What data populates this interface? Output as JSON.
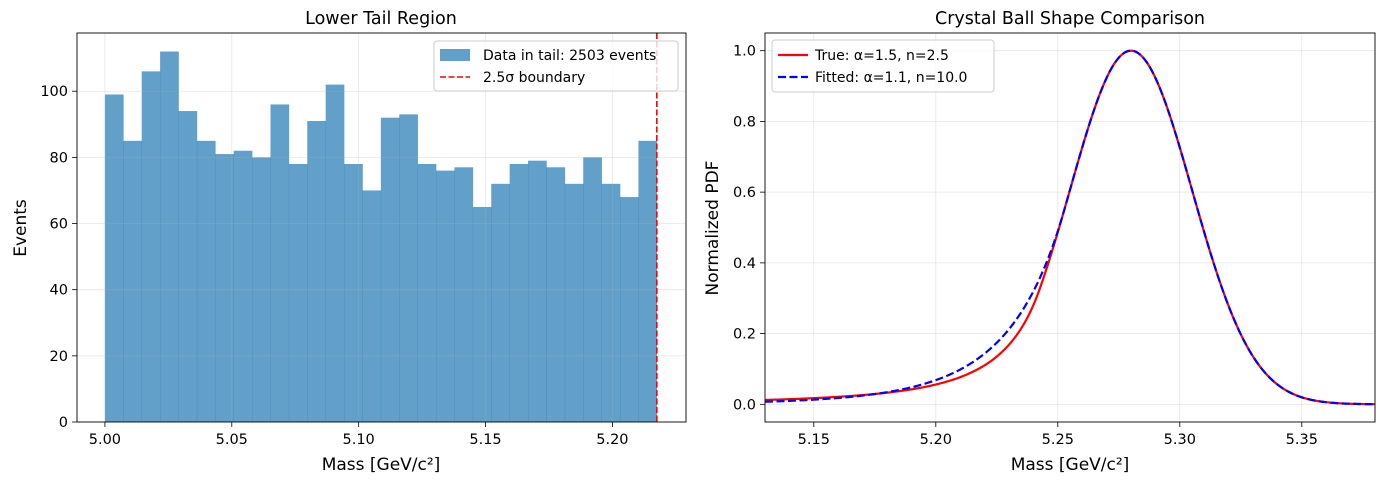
{
  "chart_data": [
    {
      "type": "bar",
      "title": "Lower Tail Region",
      "xlabel": "Mass [GeV/c²]",
      "ylabel": "Events",
      "xlim": [
        4.989,
        5.229
      ],
      "ylim": [
        0,
        117.6
      ],
      "grid": true,
      "legend_placement": "upper-right",
      "xticks": [
        5.0,
        5.05,
        5.1,
        5.15,
        5.2
      ],
      "xtick_labels": [
        "5.00",
        "5.05",
        "5.10",
        "5.15",
        "5.20"
      ],
      "yticks": [
        0,
        20,
        40,
        60,
        80,
        100
      ],
      "ytick_labels": [
        "0",
        "20",
        "40",
        "60",
        "80",
        "100"
      ],
      "bin_range": [
        5.0,
        5.2175
      ],
      "values": [
        99,
        85,
        106,
        112,
        94,
        85,
        81,
        82,
        80,
        96,
        78,
        91,
        102,
        78,
        70,
        92,
        93,
        78,
        76,
        77,
        65,
        72,
        78,
        79,
        77,
        72,
        80,
        72,
        68,
        85
      ],
      "bar_color": "#1f77b4",
      "bar_alpha": 0.7,
      "series_name": "Data in tail: 2503 events",
      "boundary": {
        "x": 5.2175,
        "name": "2.5σ boundary",
        "color": "#ff0000",
        "style": "dashed"
      }
    },
    {
      "type": "line",
      "title": "Crystal Ball Shape Comparison",
      "xlabel": "Mass [GeV/c²]",
      "ylabel": "Normalized PDF",
      "xlim": [
        5.13,
        5.38
      ],
      "ylim": [
        -0.05,
        1.05
      ],
      "grid": true,
      "legend_placement": "upper-left",
      "xticks": [
        5.15,
        5.2,
        5.25,
        5.3,
        5.35
      ],
      "xtick_labels": [
        "5.15",
        "5.20",
        "5.25",
        "5.30",
        "5.35"
      ],
      "yticks": [
        0,
        0.2,
        0.4,
        0.6,
        0.8,
        1.0
      ],
      "ytick_labels": [
        "0.0",
        "0.2",
        "0.4",
        "0.6",
        "0.8",
        "1.0"
      ],
      "series": [
        {
          "name": "True: α=1.5, n=2.5",
          "alpha": 1.5,
          "n": 2.5,
          "mu": 5.28,
          "sigma": 0.025,
          "color": "#ff0000",
          "style": "solid"
        },
        {
          "name": "Fitted: α=1.1, n=10.0",
          "alpha": 1.1,
          "n": 10.0,
          "mu": 5.28,
          "sigma": 0.025,
          "color": "#0000ff",
          "style": "dashed"
        }
      ]
    }
  ]
}
